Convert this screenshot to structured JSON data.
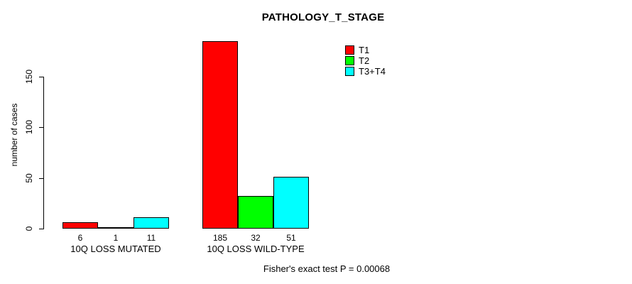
{
  "title": "PATHOLOGY_T_STAGE",
  "footer": "Fisher's exact test P = 0.00068",
  "y_axis": {
    "label": "number of cases",
    "ticks": [
      0,
      50,
      100,
      150
    ]
  },
  "legend": {
    "items": [
      {
        "label": "T1",
        "color": "#ff0000"
      },
      {
        "label": "T2",
        "color": "#00ff00"
      },
      {
        "label": "T3+T4",
        "color": "#00ffff"
      }
    ]
  },
  "chart_data": {
    "type": "bar",
    "title": "PATHOLOGY_T_STAGE",
    "xlabel": "",
    "ylabel": "number of cases",
    "categories": [
      "10Q LOSS MUTATED",
      "10Q LOSS WILD-TYPE"
    ],
    "series": [
      {
        "name": "T1",
        "color": "#ff0000",
        "values": [
          6,
          185
        ]
      },
      {
        "name": "T2",
        "color": "#00ff00",
        "values": [
          1,
          32
        ]
      },
      {
        "name": "T3+T4",
        "color": "#00ffff",
        "values": [
          11,
          51
        ]
      }
    ],
    "yticks": [
      0,
      50,
      100,
      150
    ],
    "ylim": [
      0,
      186
    ],
    "grid": false,
    "legend_position": "top-right",
    "bar_value_labels_shown": true,
    "annotation": "Fisher's exact test P = 0.00068"
  }
}
